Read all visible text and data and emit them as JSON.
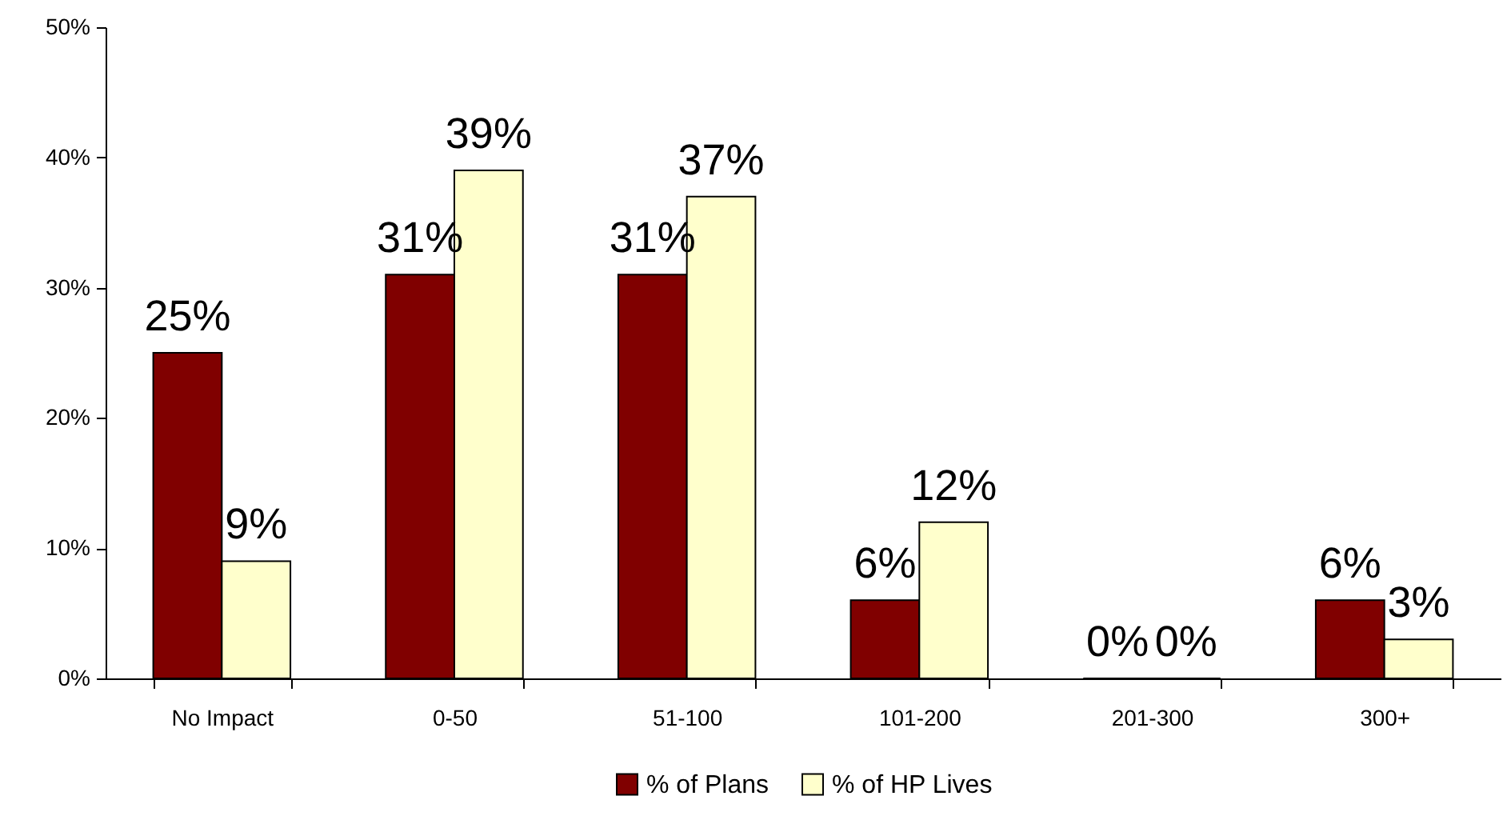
{
  "chart_data": {
    "type": "bar",
    "categories": [
      "No Impact",
      "0-50",
      "51-100",
      "101-200",
      "201-300",
      "300+"
    ],
    "series": [
      {
        "name": "% of Plans",
        "color": "#800000",
        "values": [
          25,
          31,
          31,
          6,
          0,
          6
        ],
        "value_labels": [
          "25%",
          "31%",
          "31%",
          "6%",
          "0%",
          "6%"
        ]
      },
      {
        "name": "% of HP Lives",
        "color": "#ffffcc",
        "values": [
          9,
          39,
          37,
          12,
          0,
          3
        ],
        "value_labels": [
          "9%",
          "39%",
          "37%",
          "12%",
          "0%",
          "3%"
        ]
      }
    ],
    "ylim": [
      0,
      50
    ],
    "yticks": [
      {
        "value": 0,
        "label": "0%"
      },
      {
        "value": 10,
        "label": "10%"
      },
      {
        "value": 20,
        "label": "20%"
      },
      {
        "value": 30,
        "label": "30%"
      },
      {
        "value": 40,
        "label": "40%"
      },
      {
        "value": 50,
        "label": "50%"
      }
    ],
    "grid": false,
    "legend": "bottom"
  }
}
